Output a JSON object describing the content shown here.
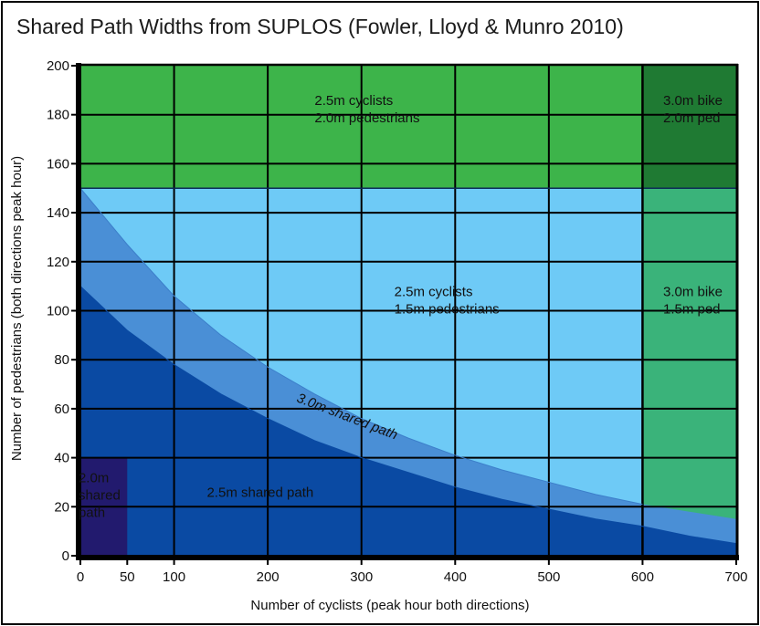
{
  "chart_data": {
    "type": "area",
    "title": "Shared Path Widths from SUPLOS (Fowler, Lloyd & Munro 2010)",
    "xlabel": "Number of cyclists (peak hour both directions)",
    "ylabel": "Number of pedestrians (both directions peak hour)",
    "xlim": [
      0,
      700
    ],
    "ylim": [
      0,
      200
    ],
    "x_ticks": [
      "0",
      "50",
      "100",
      "200",
      "300",
      "400",
      "500",
      "600",
      "700"
    ],
    "x_tick_values": [
      0,
      50,
      100,
      200,
      300,
      400,
      500,
      600,
      700
    ],
    "y_ticks": [
      "0",
      "20",
      "40",
      "60",
      "80",
      "100",
      "120",
      "140",
      "160",
      "180",
      "200"
    ],
    "y_tick_values": [
      0,
      20,
      40,
      60,
      80,
      100,
      120,
      140,
      160,
      180,
      200
    ],
    "grid": true,
    "grid_x": [
      100,
      200,
      300,
      400,
      500,
      600
    ],
    "grid_y": [
      20,
      40,
      60,
      80,
      100,
      120,
      140,
      160,
      180
    ],
    "boundaries": {
      "pedestrian_threshold": 150,
      "cyclist_threshold": 600,
      "curve_2_5m_upper": {
        "x": [
          0,
          50,
          100,
          150,
          200,
          250,
          300,
          350,
          400,
          450,
          500,
          550,
          600,
          650,
          700
        ],
        "y": [
          110,
          92,
          78,
          66,
          56,
          47,
          40,
          34,
          28,
          23,
          19,
          15,
          12,
          8,
          5
        ]
      },
      "curve_3_0m_upper": {
        "x": [
          0,
          50,
          100,
          150,
          200,
          250,
          300,
          350,
          400,
          450,
          500,
          550,
          600,
          650,
          700
        ],
        "y": [
          152,
          127,
          106,
          90,
          77,
          66,
          56,
          48,
          41,
          35,
          30,
          25,
          21,
          18,
          15
        ]
      },
      "small_region_2_0m": {
        "x": [
          0,
          50
        ],
        "y": [
          0,
          40
        ]
      }
    },
    "regions": [
      {
        "id": "r_green",
        "lines": [
          "2.5m cyclists",
          "2.0m pedestrians"
        ],
        "color": "#3db44a",
        "label_at": [
          250,
          184
        ]
      },
      {
        "id": "r_darkgreen",
        "lines": [
          "3.0m bike",
          "2.0m ped"
        ],
        "color": "#1f7a33",
        "label_at": [
          622,
          184
        ]
      },
      {
        "id": "r_lightblue",
        "lines": [
          "2.5m cyclists",
          "1.5m pedestrians"
        ],
        "color": "#6ecaf6",
        "label_at": [
          335,
          106
        ]
      },
      {
        "id": "r_teal",
        "lines": [
          "3.0m bike",
          "1.5m ped"
        ],
        "color": "#3ab37a",
        "label_at": [
          622,
          106
        ]
      },
      {
        "id": "r_mid",
        "lines": [
          "3.0m shared path"
        ],
        "color": "#4a8fd6",
        "label_at": [
          230,
          63
        ],
        "rotate": 21,
        "italic": true
      },
      {
        "id": "r_dark",
        "lines": [
          "2.5m shared path"
        ],
        "color": "#0a4aa3",
        "label_at": [
          135,
          24
        ]
      },
      {
        "id": "r_navy",
        "lines": [
          "2.0m",
          "shared",
          "path"
        ],
        "color": "#221a6e",
        "label_at": [
          -2,
          30
        ],
        "text_color": "#ffffff"
      }
    ]
  }
}
